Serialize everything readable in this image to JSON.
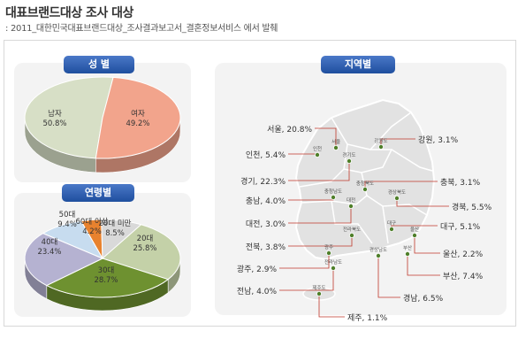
{
  "header": {
    "title": "대표브랜드대상 조사 대상",
    "subtitle": ": 2011_대한민국대표브랜드대상_조사결과보고서_결혼정보서비스 에서 발췌"
  },
  "panels": {
    "gender": "성 별",
    "age": "연령별",
    "region": "지역별"
  },
  "chart_data": [
    {
      "type": "pie",
      "title": "성 별",
      "slices": [
        {
          "label": "남자",
          "value": 50.8,
          "color": "#d7dfc6"
        },
        {
          "label": "여자",
          "value": 49.2,
          "color": "#f2a48c"
        }
      ]
    },
    {
      "type": "pie",
      "title": "연령별",
      "slices": [
        {
          "label": "60대 이상",
          "value": 4.2,
          "color": "#e8822e"
        },
        {
          "label": "20대 미만",
          "value": 8.5,
          "color": "#d9d9d9"
        },
        {
          "label": "20대",
          "value": 25.8,
          "color": "#c4d1a8"
        },
        {
          "label": "30대",
          "value": 28.7,
          "color": "#6e9130"
        },
        {
          "label": "40대",
          "value": 23.4,
          "color": "#b5b2d1"
        },
        {
          "label": "50대",
          "value": 9.4,
          "color": "#c7dcef"
        }
      ]
    },
    {
      "type": "table",
      "title": "지역별",
      "regions": [
        {
          "name": "서울",
          "value": "20.8%",
          "map": "서울"
        },
        {
          "name": "강원",
          "value": "3.1%",
          "map": "강원도"
        },
        {
          "name": "인천",
          "value": "5.4%",
          "map": "인천"
        },
        {
          "name": "경기",
          "value": "22.3%",
          "map": "경기도"
        },
        {
          "name": "충북",
          "value": "3.1%",
          "map": "충청북도"
        },
        {
          "name": "충남",
          "value": "4.0%",
          "map": "충청남도"
        },
        {
          "name": "경북",
          "value": "5.5%",
          "map": "경상북도"
        },
        {
          "name": "대전",
          "value": "3.0%",
          "map": "대전"
        },
        {
          "name": "대구",
          "value": "5.1%",
          "map": "대구"
        },
        {
          "name": "전북",
          "value": "3.8%",
          "map": "전라북도"
        },
        {
          "name": "울산",
          "value": "2.2%",
          "map": "울산"
        },
        {
          "name": "광주",
          "value": "2.9%",
          "map": "광주"
        },
        {
          "name": "부산",
          "value": "7.4%",
          "map": "부산"
        },
        {
          "name": "전남",
          "value": "4.0%",
          "map": "전라남도"
        },
        {
          "name": "경남",
          "value": "6.5%",
          "map": "경상남도"
        },
        {
          "name": "제주",
          "value": "1.1%",
          "map": "제주도"
        }
      ]
    }
  ]
}
